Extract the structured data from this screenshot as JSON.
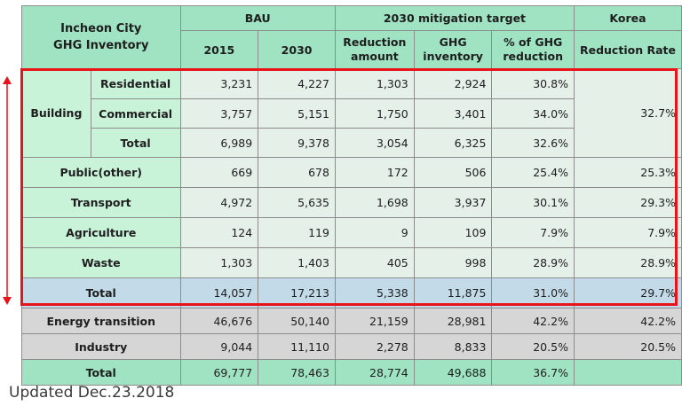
{
  "header": {
    "title_line1": "Incheon City",
    "title_line2": "GHG Inventory",
    "bau": "BAU",
    "target": "2030 mitigation target",
    "korea": "Korea",
    "col_2015": "2015",
    "col_2030": "2030",
    "reduction_amount": "Reduction amount",
    "ghg_inventory": "GHG inventory",
    "pct_reduction": "% of GHG reduction",
    "reduction_rate": "Reduction Rate"
  },
  "building": {
    "label": "Building",
    "korea_rate": "32.7%",
    "rows": [
      {
        "name": "Residential",
        "bau2015": "3,231",
        "bau2030": "4,227",
        "reduction": "1,303",
        "ghg": "2,924",
        "pct": "30.8%"
      },
      {
        "name": "Commercial",
        "bau2015": "3,757",
        "bau2030": "5,151",
        "reduction": "1,750",
        "ghg": "3,401",
        "pct": "34.0%"
      },
      {
        "name": "Total",
        "bau2015": "6,989",
        "bau2030": "9,378",
        "reduction": "3,054",
        "ghg": "6,325",
        "pct": "32.6%"
      }
    ]
  },
  "sectors": [
    {
      "name": "Public(other)",
      "bau2015": "669",
      "bau2030": "678",
      "reduction": "172",
      "ghg": "506",
      "pct": "25.4%",
      "korea": "25.3%"
    },
    {
      "name": "Transport",
      "bau2015": "4,972",
      "bau2030": "5,635",
      "reduction": "1,698",
      "ghg": "3,937",
      "pct": "30.1%",
      "korea": "29.3%"
    },
    {
      "name": "Agriculture",
      "bau2015": "124",
      "bau2030": "119",
      "reduction": "9",
      "ghg": "109",
      "pct": "7.9%",
      "korea": "7.9%"
    },
    {
      "name": "Waste",
      "bau2015": "1,303",
      "bau2030": "1,403",
      "reduction": "405",
      "ghg": "998",
      "pct": "28.9%",
      "korea": "28.9%"
    }
  ],
  "subtotal": {
    "name": "Total",
    "bau2015": "14,057",
    "bau2030": "17,213",
    "reduction": "5,338",
    "ghg": "11,875",
    "pct": "31.0%",
    "korea": "29.7%"
  },
  "other": [
    {
      "name": "Energy transition",
      "bau2015": "46,676",
      "bau2030": "50,140",
      "reduction": "21,159",
      "ghg": "28,981",
      "pct": "42.2%",
      "korea": "42.2%"
    },
    {
      "name": "Industry",
      "bau2015": "9,044",
      "bau2030": "11,110",
      "reduction": "2,278",
      "ghg": "8,833",
      "pct": "20.5%",
      "korea": "20.5%"
    }
  ],
  "grand_total": {
    "name": "Total",
    "bau2015": "69,777",
    "bau2030": "78,463",
    "reduction": "28,774",
    "ghg": "49,688",
    "pct": "36.7%",
    "korea": ""
  },
  "footer": "Updated Dec.23.2018",
  "colors": {
    "header": "#9fe3c3",
    "highlight_box": "#e8141a",
    "total_row": "#c3dbe8",
    "grey_row": "#d6d6d6"
  }
}
